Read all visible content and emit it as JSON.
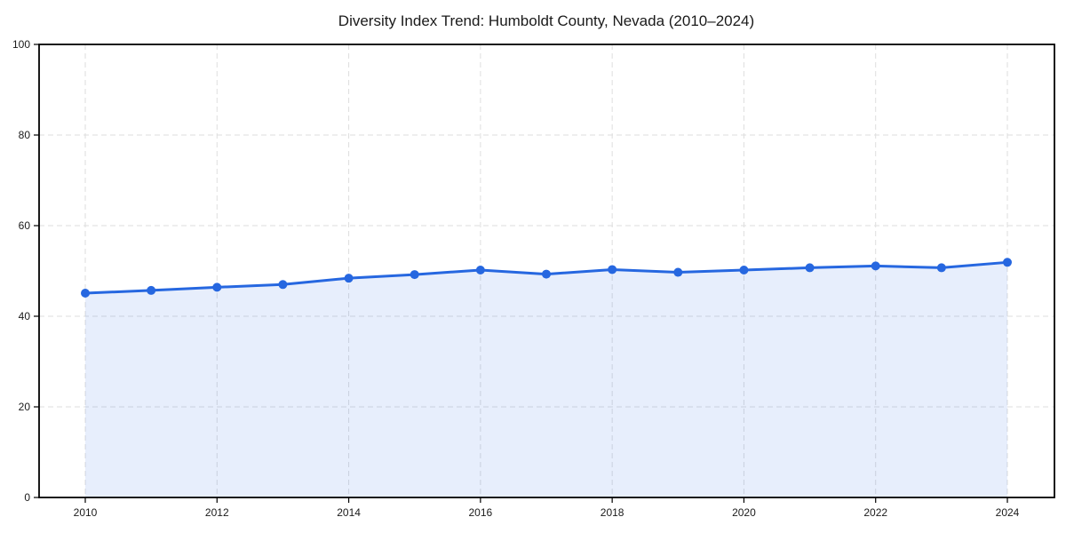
{
  "chart_data": {
    "type": "line",
    "title": "Diversity Index Trend: Humboldt County, Nevada (2010–2024)",
    "x": [
      2010,
      2011,
      2012,
      2013,
      2014,
      2015,
      2016,
      2017,
      2018,
      2019,
      2020,
      2021,
      2022,
      2023,
      2024
    ],
    "series": [
      {
        "name": "Diversity Index",
        "values": [
          45.1,
          45.7,
          46.4,
          47.0,
          48.4,
          49.2,
          50.2,
          49.3,
          50.3,
          49.7,
          50.2,
          50.7,
          51.1,
          50.7,
          51.9
        ]
      }
    ],
    "xlabel": "",
    "ylabel": "",
    "ylim": [
      0,
      100
    ],
    "yticks": [
      0,
      20,
      40,
      60,
      80,
      100
    ],
    "xticks": [
      2010,
      2012,
      2014,
      2016,
      2018,
      2020,
      2022,
      2024
    ],
    "grid": true,
    "grid_style": "dashed",
    "legend_position": "none",
    "marker": "circle",
    "area_fill": true,
    "colors": {
      "line": "#2667e0",
      "marker": "#2667e0",
      "area": "rgba(38, 103, 224, 0.11)",
      "grid": "#dedede",
      "axis": "#000000",
      "text": "#1a1a1a",
      "background": "#ffffff"
    }
  }
}
